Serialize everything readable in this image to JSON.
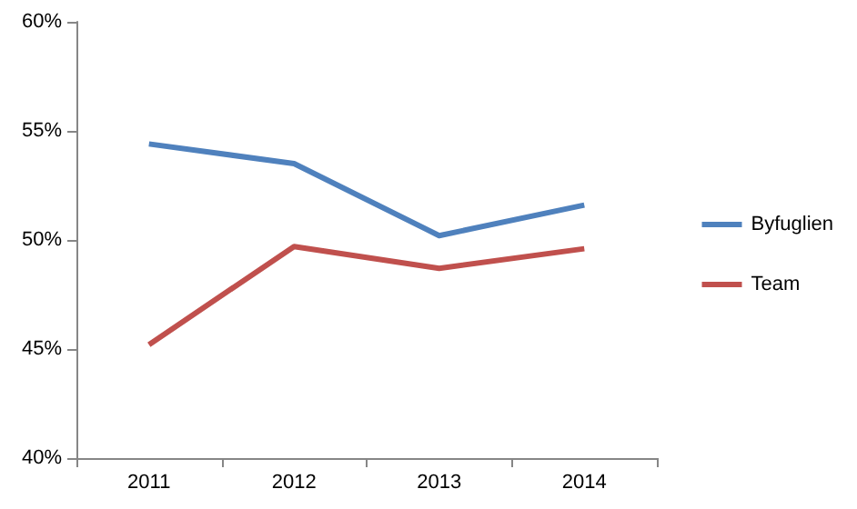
{
  "chart_data": {
    "type": "line",
    "categories": [
      "2011",
      "2012",
      "2013",
      "2014"
    ],
    "series": [
      {
        "name": "Byfuglien",
        "color": "#4f81bd",
        "values": [
          54.4,
          53.5,
          50.2,
          51.6
        ]
      },
      {
        "name": "Team",
        "color": "#c0504d",
        "values": [
          45.2,
          49.7,
          48.7,
          49.6
        ]
      }
    ],
    "ylim": [
      40,
      60
    ],
    "yticks": [
      {
        "value": 40,
        "label": "40%"
      },
      {
        "value": 45,
        "label": "45%"
      },
      {
        "value": 50,
        "label": "50%"
      },
      {
        "value": 55,
        "label": "55%"
      },
      {
        "value": 60,
        "label": "60%"
      }
    ],
    "grid": false,
    "legend": "right",
    "marker": "none",
    "line_style": "solid"
  }
}
